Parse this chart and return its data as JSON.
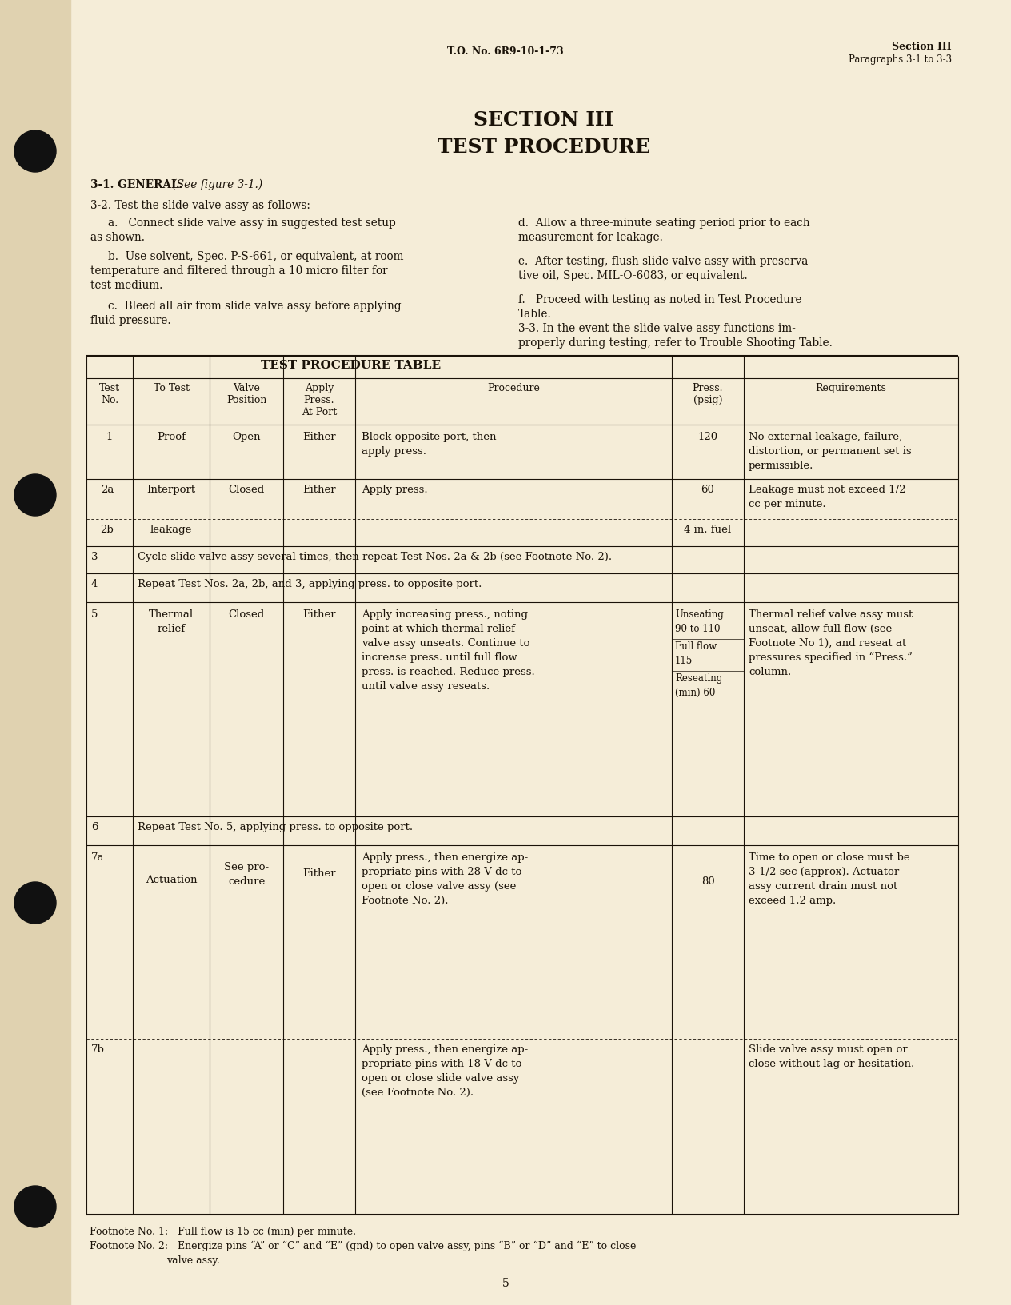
{
  "page_bg": "#f5edd8",
  "spine_color": "#e8d8b8",
  "text_color": "#1a1208",
  "header_left": "T.O. No. 6R9-10-1-73",
  "header_right_line1": "Section III",
  "header_right_line2": "Paragraphs 3-1 to 3-3",
  "section_title_line1": "SECTION III",
  "section_title_line2": "TEST PROCEDURE",
  "table_title": "TEST PROCEDURE TABLE",
  "page_num": "5",
  "footnote1": "Footnote No. 1:   Full flow is 15 cc (min) per minute.",
  "footnote2a": "Footnote No. 2:   Energize pins “A” or “C” and “E” (gnd) to open valve assy, pins “B” or “D” and “E” to close",
  "footnote2b": "                   valve assy."
}
